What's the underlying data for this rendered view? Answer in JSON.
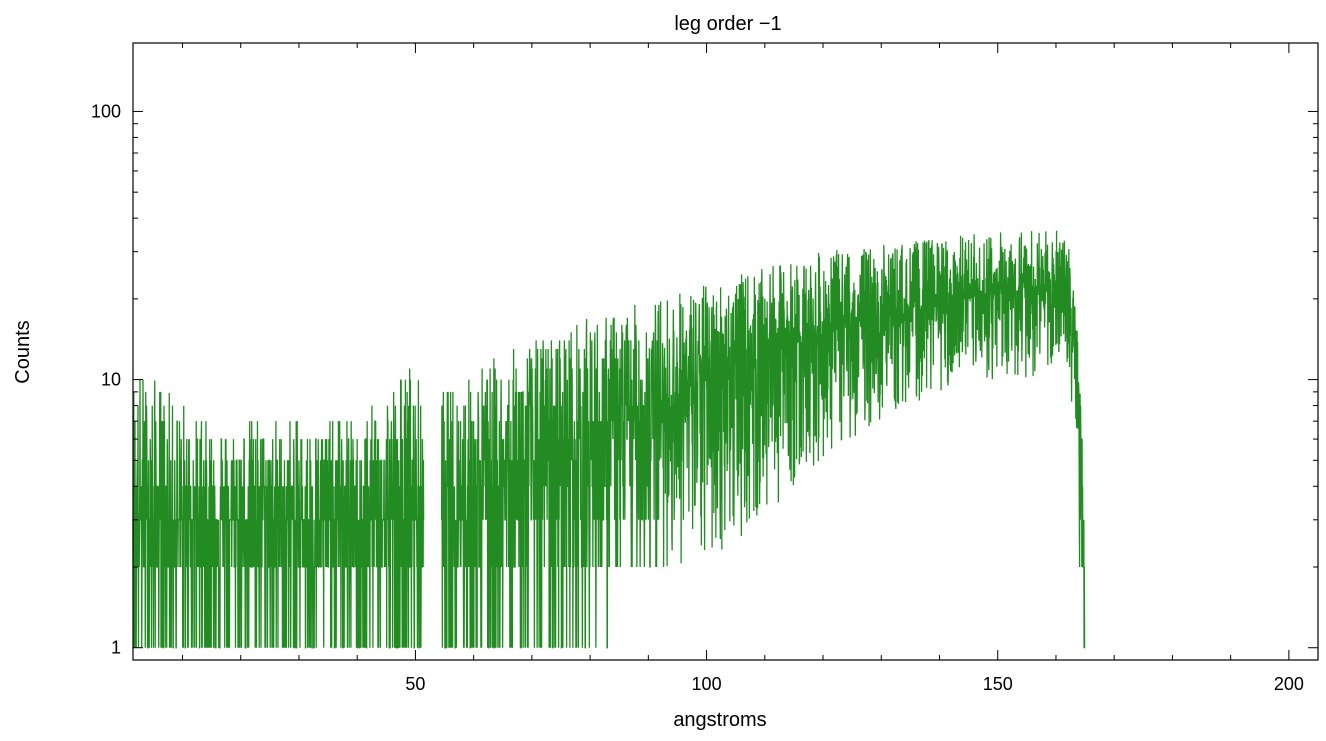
{
  "chart_data": {
    "type": "line",
    "title": "leg order −1",
    "xlabel": "angstroms",
    "ylabel": "Counts",
    "xlim": [
      1.5,
      205
    ],
    "ylim": [
      0.9,
      180
    ],
    "yscale": "log",
    "grid": false,
    "colors": {
      "line": "#228b22",
      "axes": "#000000",
      "background": "#ffffff"
    },
    "x_ticks": [
      {
        "value": 50,
        "label": "50"
      },
      {
        "value": 100,
        "label": "100"
      },
      {
        "value": 150,
        "label": "150"
      },
      {
        "value": 200,
        "label": "200"
      }
    ],
    "y_ticks": [
      {
        "value": 1,
        "label": "1"
      },
      {
        "value": 10,
        "label": "10"
      },
      {
        "value": 100,
        "label": "100"
      }
    ],
    "series": [
      {
        "color": "#228b22",
        "segments": [
          {
            "x_start": 1.5,
            "x_end": 51.5
          },
          {
            "x_start": 54.5,
            "x_end": 165
          }
        ],
        "x": [
          1.5,
          5,
          10,
          20,
          30,
          40,
          50,
          51.5,
          54.5,
          60,
          70,
          80,
          90,
          100,
          110,
          120,
          130,
          140,
          150,
          155,
          160,
          162,
          163,
          164,
          165
        ],
        "y_median": [
          3,
          3,
          3,
          3,
          3,
          3,
          3,
          3,
          3,
          3.5,
          4.5,
          6,
          7.5,
          10,
          12.5,
          15,
          17,
          19,
          21,
          22,
          22,
          20,
          15,
          8,
          1
        ],
        "y_max": [
          11,
          10,
          8,
          7,
          7,
          7,
          12,
          6,
          9,
          11,
          14,
          17,
          20,
          23,
          26,
          30,
          32,
          34,
          36,
          37,
          36,
          34,
          25,
          10,
          2
        ],
        "y_min": [
          0.9,
          0.9,
          0.9,
          0.9,
          0.9,
          0.9,
          0.9,
          0.9,
          0.9,
          0.9,
          0.9,
          1,
          2,
          2,
          3,
          5,
          7,
          9,
          10,
          10,
          11,
          10,
          6,
          2,
          0.9
        ]
      }
    ]
  }
}
